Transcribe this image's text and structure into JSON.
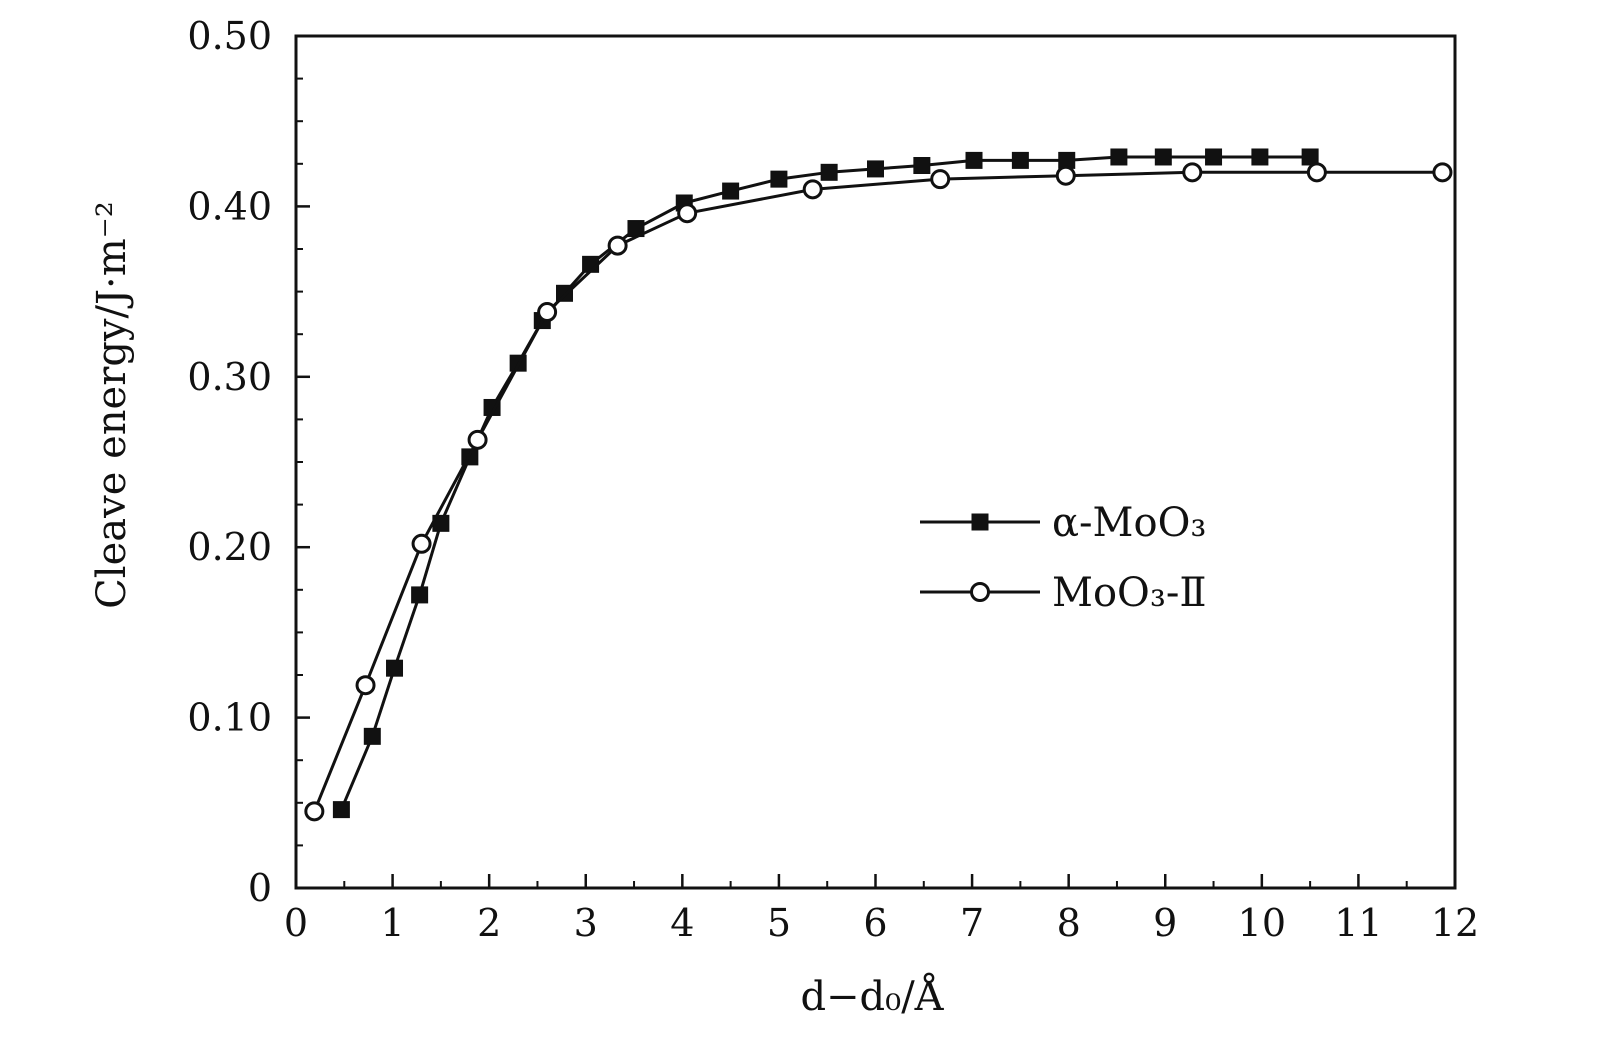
{
  "chart_data": {
    "type": "line",
    "title": "",
    "xlabel": "d−d₀/Å",
    "ylabel": "Cleave energy/J·m⁻²",
    "xlim": [
      0,
      12
    ],
    "ylim": [
      0,
      0.5
    ],
    "xticks": [
      0,
      1,
      2,
      3,
      4,
      5,
      6,
      7,
      8,
      9,
      10,
      11,
      12
    ],
    "xtick_labels": [
      "0",
      "1",
      "2",
      "3",
      "4",
      "5",
      "6",
      "7",
      "8",
      "9",
      "10",
      "11",
      "12"
    ],
    "yticks": [
      0,
      0.1,
      0.2,
      0.3,
      0.4,
      0.5
    ],
    "ytick_labels": [
      "0",
      "0.10",
      "0.20",
      "0.30",
      "0.40",
      "0.50"
    ],
    "grid": false,
    "legend_position": "right",
    "series": [
      {
        "name": "α-MoO₃",
        "marker": "filled-square",
        "x": [
          0.47,
          0.79,
          1.02,
          1.28,
          1.5,
          1.8,
          2.03,
          2.3,
          2.55,
          2.78,
          3.05,
          3.52,
          4.02,
          4.5,
          5.0,
          5.52,
          6.0,
          6.48,
          7.02,
          7.5,
          7.98,
          8.52,
          8.98,
          9.5,
          9.98,
          10.5
        ],
        "y": [
          0.046,
          0.089,
          0.129,
          0.172,
          0.214,
          0.253,
          0.282,
          0.308,
          0.333,
          0.349,
          0.366,
          0.387,
          0.402,
          0.409,
          0.416,
          0.42,
          0.422,
          0.424,
          0.427,
          0.427,
          0.427,
          0.429,
          0.429,
          0.429,
          0.429,
          0.429
        ]
      },
      {
        "name": "MoO₃-Ⅱ",
        "marker": "open-circle",
        "x": [
          0.19,
          0.72,
          1.3,
          1.88,
          2.6,
          3.33,
          4.05,
          5.35,
          6.67,
          7.97,
          9.28,
          10.57,
          11.87
        ],
        "y": [
          0.045,
          0.119,
          0.202,
          0.263,
          0.338,
          0.377,
          0.396,
          0.41,
          0.416,
          0.418,
          0.42,
          0.42,
          0.42
        ]
      }
    ],
    "colors": {
      "line": "#111111",
      "axis": "#111111",
      "marker_fill_filled": "#111111",
      "marker_fill_open": "#ffffff"
    }
  }
}
